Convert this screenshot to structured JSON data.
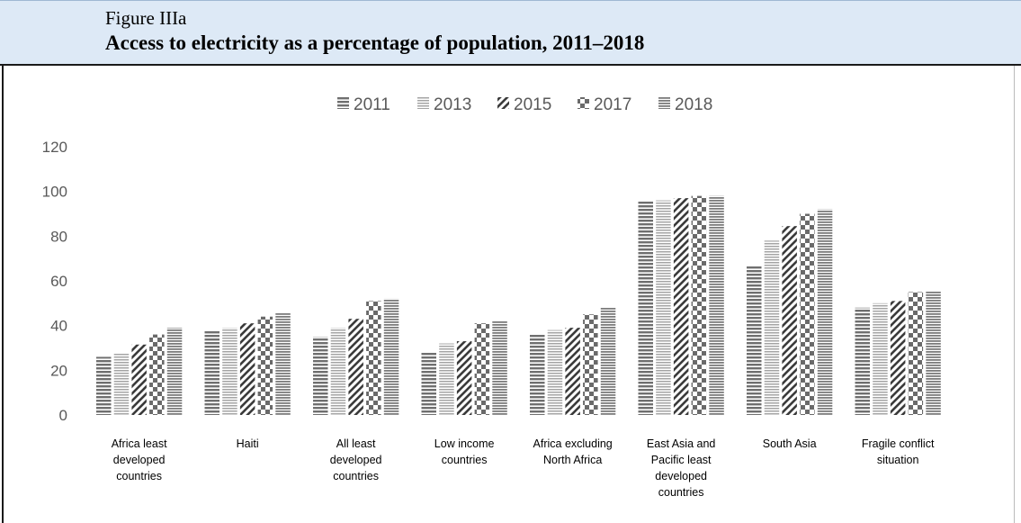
{
  "figure": {
    "label": "Figure IIIa",
    "title": "Access to electricity as a percentage of population, 2011–2018"
  },
  "chart_data": {
    "type": "bar",
    "title": "",
    "xlabel": "",
    "ylabel": "",
    "ylim": [
      0,
      120
    ],
    "yticks": [
      0,
      20,
      40,
      60,
      80,
      100,
      120
    ],
    "grid": false,
    "legend_position": "top-center",
    "categories": [
      "Africa least developed countries",
      "Haiti",
      "All least developed countries",
      "Low income countries",
      "Africa excluding North Africa",
      "East Asia and Pacific least developed countries",
      "South Asia",
      "Fragile conflict situation"
    ],
    "category_lines": [
      [
        "Africa least",
        "developed",
        "countries"
      ],
      [
        "Haiti"
      ],
      [
        "All least",
        "developed",
        "countries"
      ],
      [
        "Low income",
        "countries"
      ],
      [
        "Africa excluding",
        "North Africa"
      ],
      [
        "East Asia and",
        "Pacific least",
        "developed",
        "countries"
      ],
      [
        "South Asia"
      ],
      [
        "Fragile conflict",
        "situation"
      ]
    ],
    "series": [
      {
        "name": "2011",
        "values": [
          26,
          38,
          35,
          28,
          36,
          96,
          67,
          48
        ]
      },
      {
        "name": "2013",
        "values": [
          28,
          39,
          39,
          32,
          38,
          96,
          78,
          50
        ]
      },
      {
        "name": "2015",
        "values": [
          31.5,
          41,
          43,
          33,
          39,
          97,
          84.5,
          51
        ]
      },
      {
        "name": "2017",
        "values": [
          36,
          44,
          51,
          41,
          45,
          98,
          90,
          55
        ]
      },
      {
        "name": "2018",
        "values": [
          39,
          45.5,
          52,
          42,
          48,
          98,
          92,
          55.5
        ]
      }
    ]
  }
}
